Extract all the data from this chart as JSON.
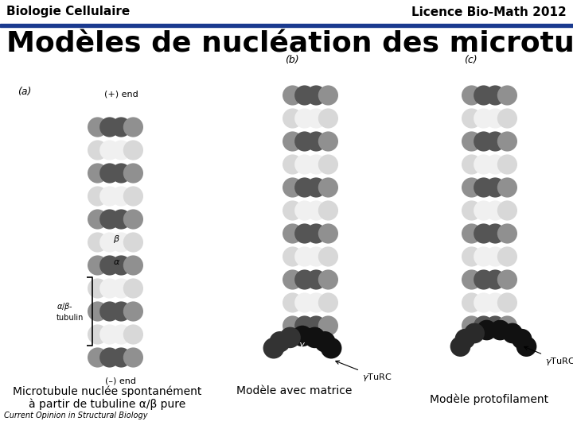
{
  "bg_color": "#ffffff",
  "header_left": "Biologie Cellulaire",
  "header_right": "Licence Bio-Math 2012",
  "header_line_color": "#1a3a8f",
  "title_text": "Modèles de nucléation des microtubules",
  "title_text_color": "#000000",
  "caption_a": "Microtubule nuclée spontanément\nà partir de tubuline α/β pure",
  "caption_b": "Modèle avec matrice",
  "caption_c": "Modèle protofilament",
  "source_text": "Current Opinion in Structural Biology",
  "header_font_size": 11,
  "title_font_size": 26,
  "caption_font_size": 10,
  "source_font_size": 7,
  "light_gray": "#d8d8d8",
  "mid_gray": "#909090",
  "dark_gray": "#555555",
  "white_sphere": "#f0f0f0",
  "black_col": "#1a1a1a"
}
